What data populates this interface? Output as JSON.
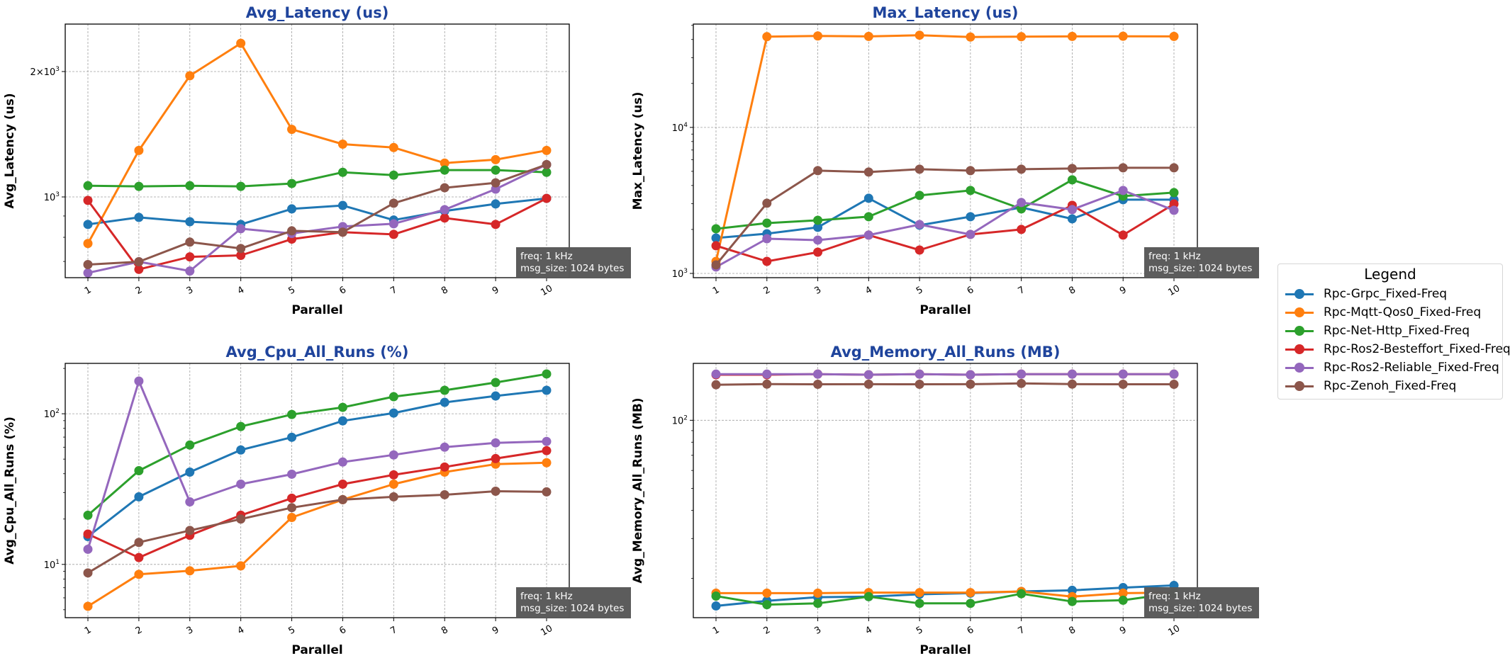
{
  "figure": {
    "legend_title": "Legend",
    "annotation_lines": [
      "freq: 1 kHz",
      "msg_size: 1024 bytes"
    ]
  },
  "series": [
    {
      "name": "Rpc-Grpc_Fixed-Freq",
      "color": "#1f77b4"
    },
    {
      "name": "Rpc-Mqtt-Qos0_Fixed-Freq",
      "color": "#ff7f0e"
    },
    {
      "name": "Rpc-Net-Http_Fixed-Freq",
      "color": "#2ca02c"
    },
    {
      "name": "Rpc-Ros2-Besteffort_Fixed-Freq",
      "color": "#d62728"
    },
    {
      "name": "Rpc-Ros2-Reliable_Fixed-Freq",
      "color": "#9467bd"
    },
    {
      "name": "Rpc-Zenoh_Fixed-Freq",
      "color": "#8c564b"
    }
  ],
  "title_color": "#1f449c",
  "chart_data": [
    {
      "type": "line",
      "title": "Avg_Latency (us)",
      "xlabel": "Parallel",
      "ylabel": "Avg_Latency (us)",
      "yscale": "log",
      "ylim": [
        640,
        2600
      ],
      "yticks": [
        {
          "value": 1000,
          "label": "10^3"
        },
        {
          "value": 2000,
          "label": "2×10^3"
        }
      ],
      "yminor": [
        700,
        800,
        900,
        3000
      ],
      "categories": [
        "1",
        "2",
        "3",
        "4",
        "5",
        "6",
        "7",
        "8",
        "9",
        "10"
      ],
      "grid": true,
      "series": [
        {
          "name": "Rpc-Grpc_Fixed-Freq",
          "values": [
            859,
            893,
            872,
            859,
            936,
            954,
            880,
            925,
            962,
            992
          ]
        },
        {
          "name": "Rpc-Mqtt-Qos0_Fixed-Freq",
          "values": [
            773,
            1293,
            1954,
            2338,
            1453,
            1339,
            1314,
            1206,
            1229,
            1293
          ]
        },
        {
          "name": "Rpc-Net-Http_Fixed-Freq",
          "values": [
            1064,
            1060,
            1064,
            1060,
            1077,
            1146,
            1128,
            1160,
            1160,
            1146
          ]
        },
        {
          "name": "Rpc-Ros2-Besteffort_Fixed-Freq",
          "values": [
            981,
            670,
            718,
            724,
            792,
            823,
            813,
            890,
            859,
            992
          ]
        },
        {
          "name": "Rpc-Ros2-Reliable_Fixed-Freq",
          "values": [
            657,
            699,
            664,
            839,
            817,
            849,
            862,
            932,
            1044,
            1196
          ]
        },
        {
          "name": "Rpc-Zenoh_Fixed-Freq",
          "values": [
            688,
            699,
            779,
            752,
            829,
            823,
            966,
            1052,
            1081,
            1196
          ]
        }
      ]
    },
    {
      "type": "line",
      "title": "Max_Latency (us)",
      "xlabel": "Parallel",
      "ylabel": "Max_Latency (us)",
      "yscale": "log",
      "ylim": [
        935,
        51000
      ],
      "yticks": [
        {
          "value": 1000,
          "label": "10^3"
        },
        {
          "value": 10000,
          "label": "10^4"
        }
      ],
      "yminor": [
        2000,
        3000,
        4000,
        5000,
        6000,
        7000,
        8000,
        9000,
        20000,
        30000,
        40000,
        50000
      ],
      "categories": [
        "1",
        "2",
        "3",
        "4",
        "5",
        "6",
        "7",
        "8",
        "9",
        "10"
      ],
      "grid": true,
      "series": [
        {
          "name": "Rpc-Grpc_Fixed-Freq",
          "values": [
            1748,
            1870,
            2068,
            3270,
            2138,
            2445,
            2828,
            2364,
            3197,
            3197
          ]
        },
        {
          "name": "Rpc-Mqtt-Qos0_Fixed-Freq",
          "values": [
            1209,
            41800,
            42300,
            42000,
            42800,
            41600,
            41800,
            42000,
            42100,
            42000
          ]
        },
        {
          "name": "Rpc-Net-Http_Fixed-Freq",
          "values": [
            2022,
            2211,
            2312,
            2445,
            3420,
            3698,
            2765,
            4373,
            3382,
            3576
          ]
        },
        {
          "name": "Rpc-Ros2-Besteffort_Fixed-Freq",
          "values": [
            1547,
            1209,
            1398,
            1829,
            1446,
            1849,
            2000,
            2925,
            1829,
            2990
          ]
        },
        {
          "name": "Rpc-Ros2-Reliable_Fixed-Freq",
          "values": [
            1106,
            1729,
            1691,
            1829,
            2162,
            1849,
            3058,
            2735,
            3698,
            2704
          ]
        },
        {
          "name": "Rpc-Zenoh_Fixed-Freq",
          "values": [
            1144,
            3024,
            5057,
            4945,
            5171,
            5057,
            5171,
            5229,
            5287,
            5287
          ]
        }
      ]
    },
    {
      "type": "line",
      "title": "Avg_Cpu_All_Runs (%)",
      "xlabel": "Parallel",
      "ylabel": "Avg_Cpu_All_Runs (%)",
      "yscale": "log",
      "ylim": [
        4.43,
        216
      ],
      "yticks": [
        {
          "value": 10,
          "label": "10^1"
        },
        {
          "value": 100,
          "label": "10^2"
        }
      ],
      "yminor": [
        5,
        6,
        7,
        8,
        9,
        20,
        30,
        40,
        50,
        60,
        70,
        80,
        90,
        200
      ],
      "categories": [
        "1",
        "2",
        "3",
        "4",
        "5",
        "6",
        "7",
        "8",
        "9",
        "10"
      ],
      "grid": true,
      "series": [
        {
          "name": "Rpc-Grpc_Fixed-Freq",
          "values": [
            15.3,
            28.1,
            41.0,
            57.5,
            69.8,
            89.7,
            101.1,
            119.0,
            131.2,
            143.1
          ]
        },
        {
          "name": "Rpc-Mqtt-Qos0_Fixed-Freq",
          "values": [
            5.27,
            8.59,
            9.07,
            9.78,
            20.5,
            26.9,
            34.1,
            41.0,
            46.3,
            47.3
          ]
        },
        {
          "name": "Rpc-Net-Http_Fixed-Freq",
          "values": [
            21.2,
            41.9,
            62.0,
            82.3,
            98.9,
            110.3,
            129.8,
            143.1,
            161.3,
            183.7
          ]
        },
        {
          "name": "Rpc-Ros2-Besteffort_Fixed-Freq",
          "values": [
            15.9,
            11.1,
            15.6,
            21.2,
            27.5,
            34.1,
            39.3,
            44.3,
            50.4,
            56.9
          ]
        },
        {
          "name": "Rpc-Ros2-Reliable_Fixed-Freq",
          "values": [
            12.6,
            164.8,
            26.0,
            34.1,
            39.7,
            47.8,
            53.3,
            60.0,
            64.1,
            65.5
          ]
        },
        {
          "name": "Rpc-Zenoh_Fixed-Freq",
          "values": [
            8.78,
            14.0,
            16.8,
            20.0,
            23.8,
            26.9,
            28.1,
            29.0,
            30.6,
            30.3
          ]
        }
      ]
    },
    {
      "type": "line",
      "title": "Avg_Memory_All_Runs (MB)",
      "xlabel": "Parallel",
      "ylabel": "Avg_Memory_All_Runs (MB)",
      "yscale": "log",
      "ylim": [
        13.4,
        178.5
      ],
      "yticks": [
        {
          "value": 100,
          "label": "10^2"
        }
      ],
      "yminor": [
        20,
        30,
        40,
        50,
        60,
        70,
        80,
        90
      ],
      "categories": [
        "1",
        "2",
        "3",
        "4",
        "5",
        "6",
        "7",
        "8",
        "9",
        "10"
      ],
      "grid": true,
      "series": [
        {
          "name": "Rpc-Grpc_Fixed-Freq",
          "values": [
            15.1,
            15.9,
            16.5,
            16.6,
            17.0,
            17.2,
            17.5,
            17.7,
            18.2,
            18.6
          ]
        },
        {
          "name": "Rpc-Mqtt-Qos0_Fixed-Freq",
          "values": [
            17.2,
            17.2,
            17.2,
            17.3,
            17.3,
            17.3,
            17.5,
            16.6,
            17.2,
            17.3
          ]
        },
        {
          "name": "Rpc-Net-Http_Fixed-Freq",
          "values": [
            16.7,
            15.3,
            15.5,
            16.6,
            15.5,
            15.5,
            17.1,
            15.8,
            16.0,
            17.2
          ]
        },
        {
          "name": "Rpc-Ros2-Besteffort_Fixed-Freq",
          "values": [
            159,
            159,
            160,
            159,
            160,
            159,
            160,
            160,
            160,
            160
          ]
        },
        {
          "name": "Rpc-Ros2-Reliable_Fixed-Freq",
          "values": [
            160,
            160,
            160,
            159,
            160,
            159,
            160,
            160,
            160,
            160
          ]
        },
        {
          "name": "Rpc-Zenoh_Fixed-Freq",
          "values": [
            143.6,
            144.5,
            144.3,
            144.4,
            144.3,
            144.4,
            145.5,
            144.5,
            144.3,
            144.3
          ]
        }
      ]
    }
  ]
}
